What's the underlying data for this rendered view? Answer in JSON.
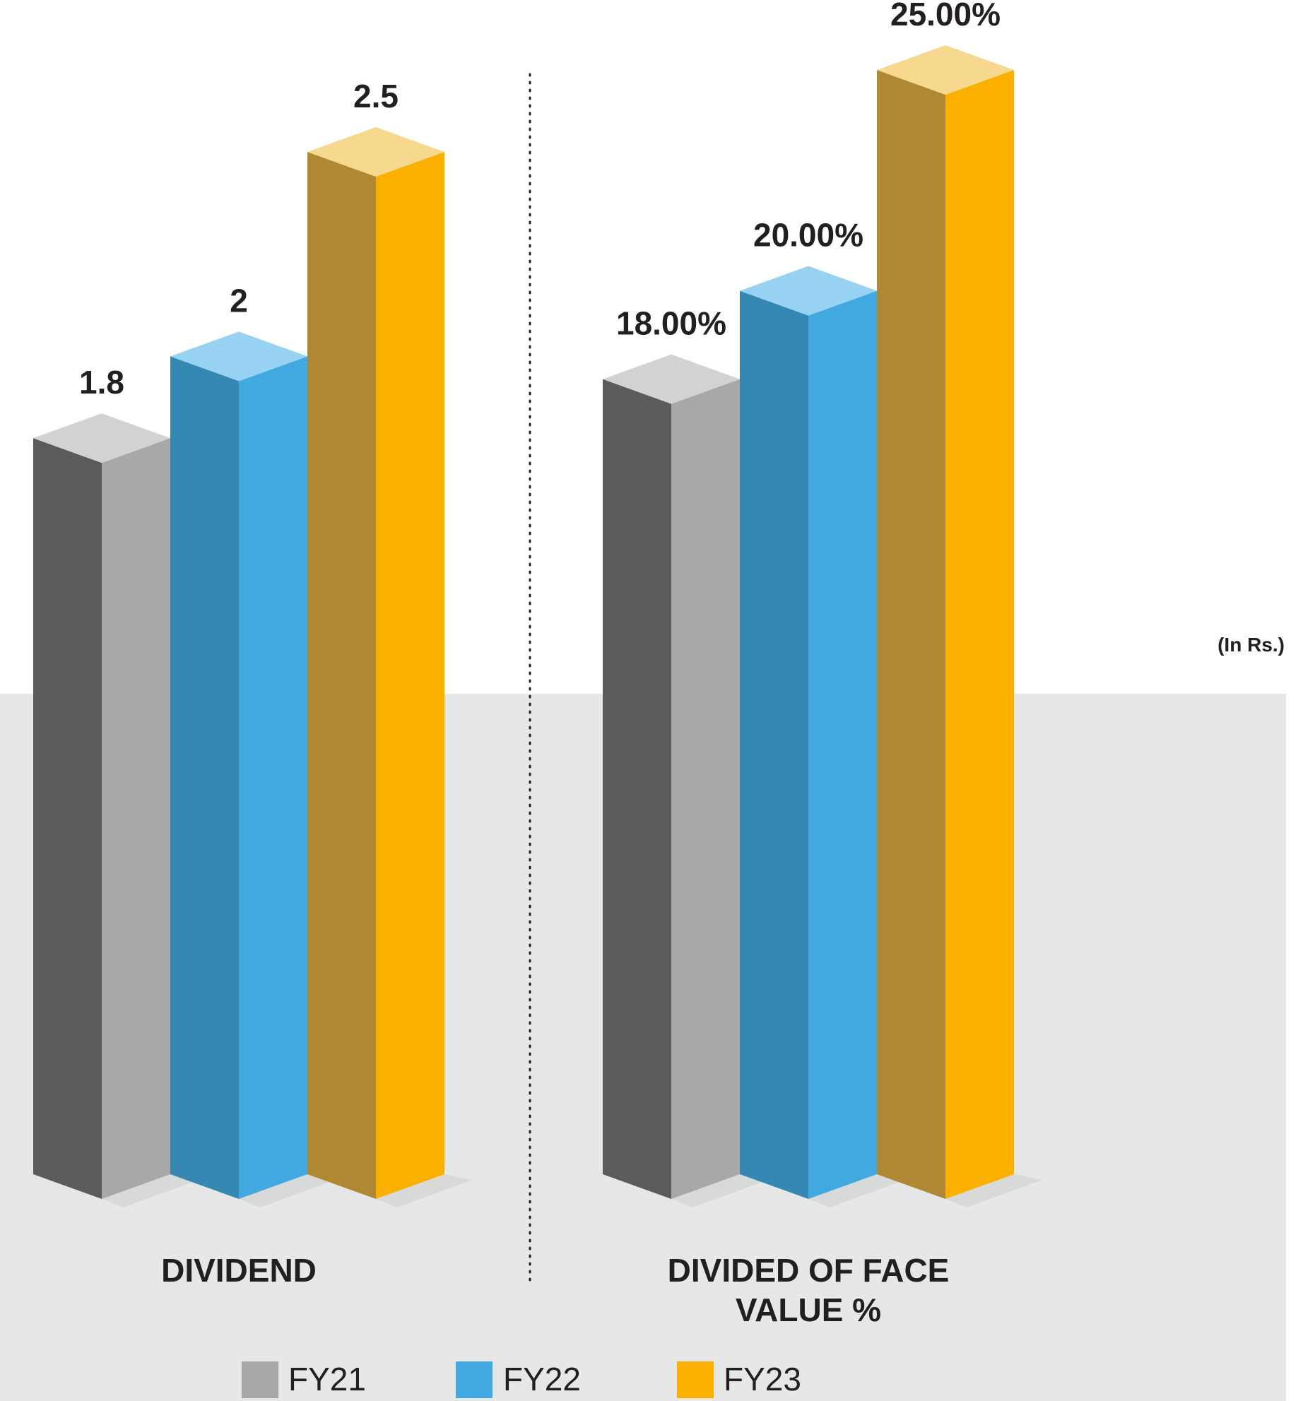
{
  "unit_note": "(In Rs.)",
  "colors": {
    "FY21": {
      "front": "#a7a8aa",
      "side": "#5b5b5d",
      "top": "#d1d2d4"
    },
    "FY22": {
      "front": "#42a9e0",
      "side": "#3488b1",
      "top": "#97d2f2"
    },
    "FY23": {
      "front": "#fbb000",
      "side": "#b08834",
      "top": "#f6d98f"
    },
    "floor": "#e6e7e7"
  },
  "chart_data": [
    {
      "type": "bar",
      "xlabel": "DIVIDEND",
      "series": [
        {
          "name": "FY21",
          "value": 1.8,
          "label": "1.8"
        },
        {
          "name": "FY22",
          "value": 2,
          "label": "2"
        },
        {
          "name": "FY23",
          "value": 2.5,
          "label": "2.5"
        }
      ]
    },
    {
      "type": "bar",
      "xlabel": "DIVIDED OF FACE VALUE %",
      "xlabel_lines": [
        "DIVIDED OF FACE",
        "VALUE %"
      ],
      "series": [
        {
          "name": "FY21",
          "value": 18,
          "label": "18.00%"
        },
        {
          "name": "FY22",
          "value": 20,
          "label": "20.00%"
        },
        {
          "name": "FY23",
          "value": 25,
          "label": "25.00%"
        }
      ]
    }
  ],
  "legend": [
    {
      "name": "FY21",
      "label": "FY21"
    },
    {
      "name": "FY22",
      "label": "FY22"
    },
    {
      "name": "FY23",
      "label": "FY23"
    }
  ]
}
